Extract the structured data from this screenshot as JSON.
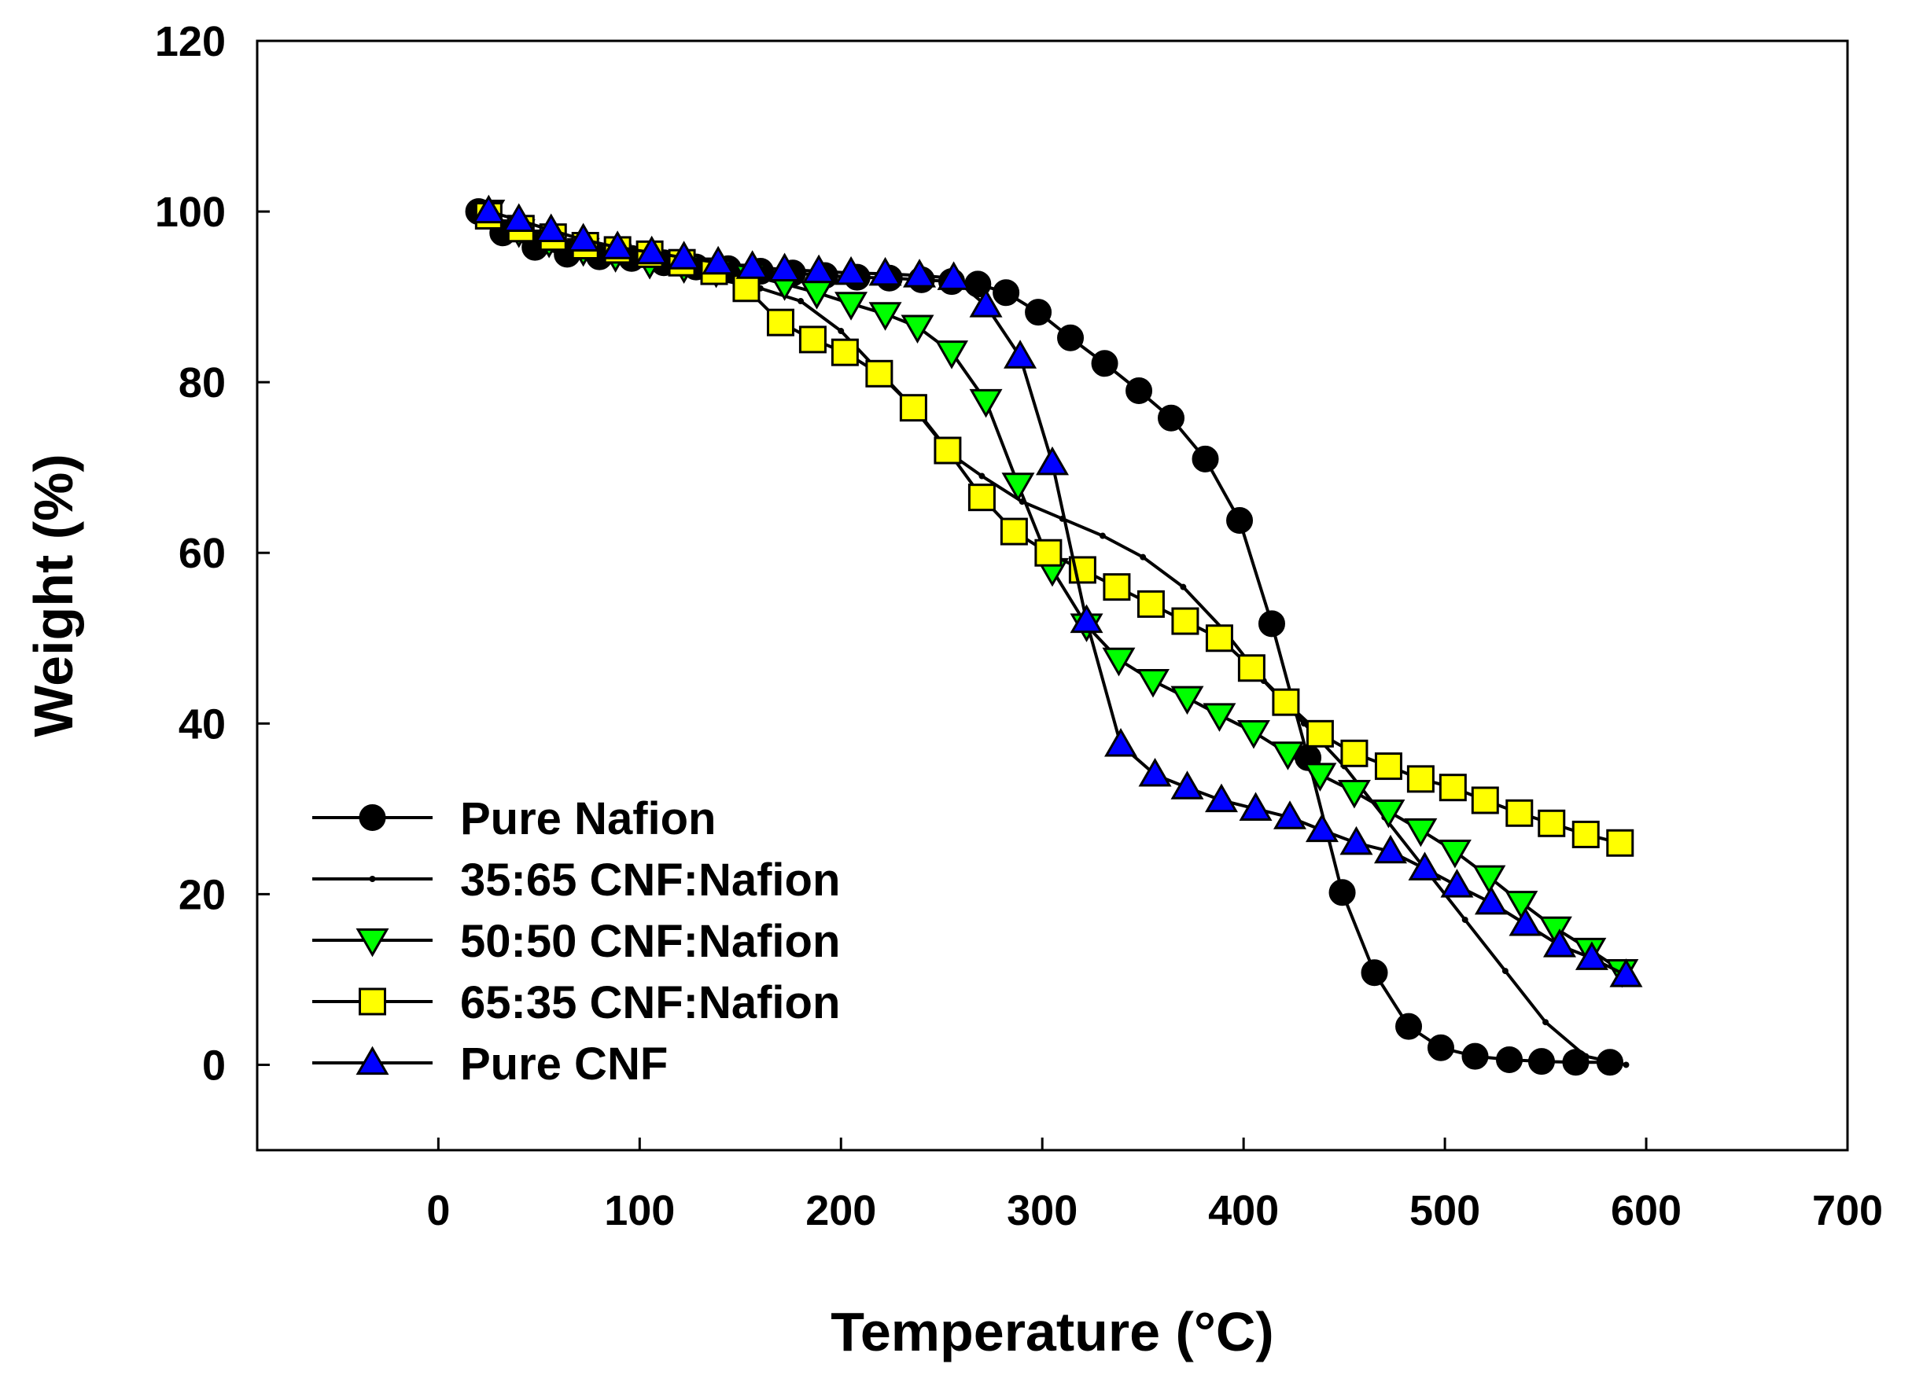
{
  "chart_data": {
    "type": "line",
    "title": "",
    "xlabel": "Temperature (°C)",
    "ylabel": "Weight (%)",
    "xlim": [
      -90,
      700
    ],
    "ylim": [
      -10,
      120
    ],
    "xticks": [
      0,
      100,
      200,
      300,
      400,
      500,
      600,
      700
    ],
    "yticks": [
      0,
      20,
      40,
      60,
      80,
      100,
      120
    ],
    "grid": false,
    "legend_position": "bottom-left",
    "series": [
      {
        "name": "Pure Nafion",
        "marker": "circle",
        "color": "#000000",
        "x": [
          20,
          32,
          48,
          64,
          80,
          96,
          112,
          128,
          144,
          160,
          176,
          192,
          208,
          224,
          240,
          255,
          268,
          282,
          298,
          314,
          331,
          348,
          364,
          381,
          398,
          414,
          432,
          449,
          465,
          482,
          498,
          515,
          532,
          548,
          565,
          582
        ],
        "y": [
          100,
          97.5,
          95.8,
          95,
          94.7,
          94.5,
          94,
          93.5,
          93.3,
          93,
          92.8,
          92.5,
          92.3,
          92.2,
          92,
          91.8,
          91.5,
          90.5,
          88.2,
          85.2,
          82.2,
          79,
          75.8,
          71,
          63.8,
          51.7,
          36,
          20.2,
          10.8,
          4.5,
          2,
          1,
          0.6,
          0.4,
          0.3,
          0.3
        ]
      },
      {
        "name": "35:65 CNF:Nafion",
        "marker": "dot",
        "color": "#000000",
        "x": [
          20,
          40,
          60,
          80,
          100,
          120,
          140,
          160,
          180,
          200,
          220,
          240,
          255,
          270,
          290,
          310,
          330,
          350,
          370,
          390,
          410,
          430,
          450,
          470,
          490,
          510,
          530,
          550,
          570,
          590
        ],
        "y": [
          100,
          97.5,
          96,
          95,
          94,
          93,
          92,
          91,
          89.5,
          86,
          81,
          76,
          71.5,
          69,
          66,
          64,
          62,
          59.5,
          56,
          51,
          45,
          40,
          35,
          29,
          23,
          17,
          11,
          5,
          1,
          0
        ]
      },
      {
        "name": "50:50 CNF:Nafion",
        "marker": "triangle-down",
        "color": "#00ff00",
        "x": [
          25,
          40,
          55,
          72,
          88,
          105,
          122,
          138,
          155,
          172,
          188,
          205,
          222,
          238,
          255,
          272,
          288,
          305,
          322,
          338,
          355,
          372,
          388,
          405,
          422,
          438,
          455,
          472,
          488,
          505,
          522,
          538,
          555,
          572,
          588
        ],
        "y": [
          100,
          97.7,
          96.5,
          95.5,
          94.8,
          94,
          93.5,
          93,
          92.5,
          91.5,
          90.5,
          89.2,
          88,
          86.5,
          83.5,
          77.8,
          68,
          58,
          51.5,
          47.5,
          45,
          43,
          41,
          39,
          36.5,
          34,
          32,
          29.7,
          27.5,
          25,
          22,
          19,
          16,
          13.5,
          11
        ]
      },
      {
        "name": "65:35 CNF:Nafion",
        "marker": "square",
        "color": "#ffff00",
        "x": [
          25,
          41,
          57,
          73,
          89,
          105,
          121,
          137,
          153,
          170,
          186,
          202,
          219,
          236,
          253,
          270,
          286,
          303,
          320,
          337,
          354,
          371,
          388,
          404,
          421,
          438,
          455,
          472,
          488,
          504,
          520,
          537,
          553,
          570,
          587
        ],
        "y": [
          99.5,
          98,
          97,
          96,
          95.5,
          95,
          94,
          93,
          91,
          87,
          85,
          83.5,
          81,
          77,
          72,
          66.5,
          62.5,
          60,
          58,
          56,
          54,
          52,
          50,
          46.5,
          42.5,
          38.8,
          36.5,
          35,
          33.5,
          32.5,
          31,
          29.5,
          28.3,
          27,
          26
        ]
      },
      {
        "name": "Pure CNF",
        "marker": "triangle-up",
        "color": "#0000ff",
        "x": [
          25,
          40,
          56,
          72,
          89,
          106,
          122,
          139,
          156,
          172,
          189,
          205,
          222,
          239,
          256,
          272,
          289,
          305,
          322,
          339,
          356,
          372,
          389,
          406,
          423,
          439,
          456,
          473,
          490,
          506,
          523,
          540,
          557,
          573,
          590
        ],
        "y": [
          100,
          99,
          97.8,
          96.7,
          95.8,
          95.2,
          94.6,
          94,
          93.5,
          93.2,
          93,
          92.8,
          92.7,
          92.5,
          92.2,
          89,
          83,
          70.5,
          52,
          37.5,
          34,
          32.5,
          31,
          30,
          29,
          27.5,
          26,
          25,
          23,
          21,
          19,
          16.5,
          14,
          12.5,
          10.5
        ]
      }
    ]
  }
}
